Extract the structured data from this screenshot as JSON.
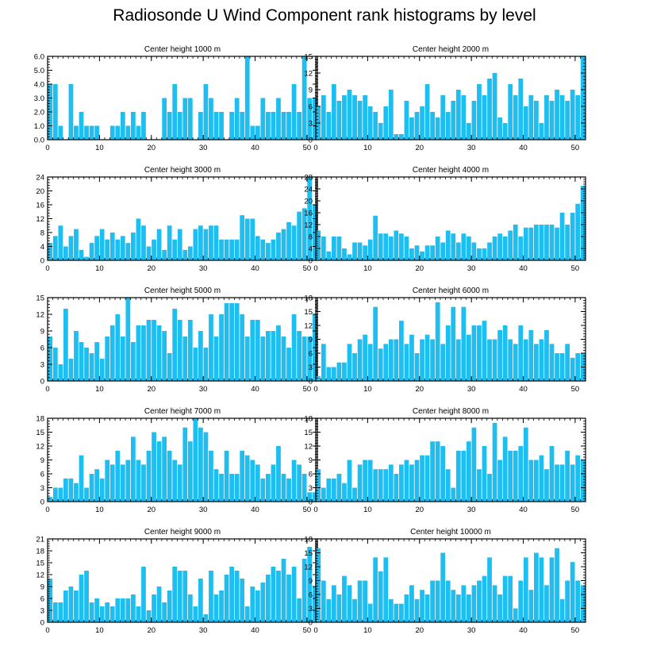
{
  "figure_title": "Radiosonde U Wind Component rank histograms by level",
  "colors": {
    "bar": "#1EBEF0",
    "axis": "#000000"
  },
  "chart_data": [
    {
      "type": "bar",
      "title": "Center height 1000 m",
      "xlim": [
        0,
        52
      ],
      "xticks": [
        0,
        10,
        20,
        30,
        40,
        50
      ],
      "ylim": [
        0,
        6
      ],
      "yticks": [
        0,
        1,
        2,
        3,
        4,
        5,
        6
      ],
      "ytick_labels": [
        "0.0",
        "1.0",
        "2.0",
        "3.0",
        "4.0",
        "5.0",
        "6.0"
      ],
      "values": [
        4,
        4,
        1,
        0,
        4,
        1,
        2,
        1,
        1,
        1,
        0,
        0,
        1,
        1,
        2,
        1,
        2,
        1,
        2,
        0,
        0,
        0,
        3,
        2,
        4,
        2,
        3,
        3,
        0,
        2,
        4,
        3,
        2,
        2,
        0,
        2,
        3,
        2,
        6,
        1,
        1,
        3,
        2,
        2,
        3,
        2,
        2,
        4,
        2,
        6,
        3,
        3
      ]
    },
    {
      "type": "bar",
      "title": "Center height 2000 m",
      "xlim": [
        0,
        52
      ],
      "xticks": [
        0,
        10,
        20,
        30,
        40,
        50
      ],
      "ylim": [
        0,
        15
      ],
      "yticks": [
        0,
        3,
        6,
        9,
        12,
        15
      ],
      "ytick_labels": [
        "0",
        "3",
        "6",
        "9",
        "12",
        "15"
      ],
      "values": [
        6,
        8,
        5,
        10,
        7,
        8,
        9,
        8,
        7,
        8,
        6,
        5,
        3,
        6,
        9,
        1,
        1,
        7,
        4,
        5,
        6,
        10,
        5,
        4,
        8,
        5,
        7,
        9,
        8,
        3,
        7,
        10,
        8,
        11,
        12,
        4,
        3,
        10,
        8,
        11,
        6,
        8,
        7,
        3,
        8,
        7,
        9,
        8,
        7,
        9,
        8,
        15
      ]
    },
    {
      "type": "bar",
      "title": "Center height 3000 m",
      "xlim": [
        0,
        52
      ],
      "xticks": [
        0,
        10,
        20,
        30,
        40,
        50
      ],
      "ylim": [
        0,
        24
      ],
      "yticks": [
        0,
        4,
        8,
        12,
        16,
        20,
        24
      ],
      "ytick_labels": [
        "0",
        "4",
        "8",
        "12",
        "16",
        "20",
        "24"
      ],
      "values": [
        5,
        7,
        10,
        4,
        7,
        9,
        3,
        1,
        5,
        7,
        9,
        6,
        8,
        6,
        7,
        5,
        8,
        12,
        10,
        4,
        6,
        9,
        3,
        10,
        6,
        9,
        3,
        4,
        9,
        10,
        9,
        10,
        10,
        6,
        6,
        6,
        6,
        13,
        12,
        12,
        7,
        6,
        5,
        6,
        8,
        9,
        11,
        10,
        14,
        15,
        24,
        16
      ]
    },
    {
      "type": "bar",
      "title": "Center height 4000 m",
      "xlim": [
        0,
        52
      ],
      "xticks": [
        0,
        10,
        20,
        30,
        40,
        50
      ],
      "ylim": [
        0,
        28
      ],
      "yticks": [
        0,
        4,
        8,
        12,
        16,
        20,
        24,
        28
      ],
      "ytick_labels": [
        "0",
        "4",
        "8",
        "12",
        "16",
        "20",
        "24",
        "28"
      ],
      "values": [
        10,
        8,
        3,
        8,
        8,
        4,
        2,
        6,
        6,
        5,
        7,
        15,
        9,
        9,
        8,
        10,
        9,
        8,
        4,
        5,
        3,
        5,
        5,
        8,
        6,
        10,
        9,
        6,
        9,
        8,
        6,
        4,
        4,
        6,
        8,
        9,
        8,
        10,
        12,
        8,
        11,
        11,
        12,
        12,
        12,
        12,
        11,
        16,
        12,
        16,
        19,
        25
      ]
    },
    {
      "type": "bar",
      "title": "Center height 5000 m",
      "xlim": [
        0,
        52
      ],
      "xticks": [
        0,
        10,
        20,
        30,
        40,
        50
      ],
      "ylim": [
        0,
        15
      ],
      "yticks": [
        0,
        3,
        6,
        9,
        12,
        15
      ],
      "ytick_labels": [
        "0",
        "3",
        "6",
        "9",
        "12",
        "15"
      ],
      "values": [
        8,
        6,
        3,
        13,
        4,
        9,
        7,
        6,
        5,
        7,
        4,
        8,
        10,
        12,
        8,
        15,
        7,
        10,
        10,
        11,
        11,
        10,
        9,
        5,
        13,
        11,
        8,
        11,
        6,
        9,
        6,
        12,
        8,
        12,
        14,
        14,
        14,
        12,
        8,
        11,
        11,
        8,
        9,
        9,
        10,
        8,
        6,
        12,
        9,
        8,
        8,
        12
      ]
    },
    {
      "type": "bar",
      "title": "Center height 6000 m",
      "xlim": [
        0,
        52
      ],
      "xticks": [
        0,
        10,
        20,
        30,
        40,
        50
      ],
      "ylim": [
        0,
        18
      ],
      "yticks": [
        0,
        3,
        6,
        9,
        12,
        15,
        18
      ],
      "ytick_labels": [
        "0",
        "3",
        "6",
        "9",
        "12",
        "15",
        "18"
      ],
      "values": [
        1,
        8,
        3,
        3,
        4,
        4,
        8,
        6,
        9,
        10,
        8,
        16,
        7,
        8,
        9,
        9,
        13,
        8,
        10,
        6,
        9,
        10,
        9,
        17,
        8,
        12,
        16,
        9,
        16,
        10,
        12,
        12,
        13,
        9,
        9,
        11,
        12,
        9,
        8,
        12,
        9,
        11,
        8,
        9,
        11,
        8,
        6,
        6,
        8,
        5,
        6,
        6
      ]
    },
    {
      "type": "bar",
      "title": "Center height 7000 m",
      "xlim": [
        0,
        52
      ],
      "xticks": [
        0,
        10,
        20,
        30,
        40,
        50
      ],
      "ylim": [
        0,
        18
      ],
      "yticks": [
        0,
        3,
        6,
        9,
        12,
        15,
        18
      ],
      "ytick_labels": [
        "0",
        "3",
        "6",
        "9",
        "12",
        "15",
        "18"
      ],
      "values": [
        1,
        3,
        3,
        5,
        5,
        4,
        10,
        3,
        6,
        7,
        5,
        9,
        8,
        11,
        8,
        9,
        14,
        9,
        8,
        11,
        15,
        13,
        14,
        11,
        9,
        8,
        16,
        13,
        18,
        16,
        15,
        11,
        7,
        6,
        11,
        6,
        6,
        11,
        10,
        9,
        8,
        5,
        6,
        8,
        12,
        6,
        5,
        9,
        8,
        6,
        2,
        2
      ]
    },
    {
      "type": "bar",
      "title": "Center height 8000 m",
      "xlim": [
        0,
        52
      ],
      "xticks": [
        0,
        10,
        20,
        30,
        40,
        50
      ],
      "ylim": [
        0,
        18
      ],
      "yticks": [
        0,
        3,
        6,
        9,
        12,
        15,
        18
      ],
      "ytick_labels": [
        "0",
        "3",
        "6",
        "9",
        "12",
        "15",
        "18"
      ],
      "values": [
        7,
        3,
        5,
        5,
        6,
        4,
        9,
        3,
        8,
        9,
        9,
        7,
        7,
        7,
        8,
        6,
        8,
        9,
        8,
        9,
        10,
        10,
        13,
        13,
        12,
        7,
        3,
        11,
        11,
        13,
        16,
        7,
        12,
        6,
        17,
        9,
        14,
        11,
        11,
        12,
        16,
        9,
        9,
        10,
        7,
        12,
        8,
        8,
        11,
        8,
        10,
        9
      ]
    },
    {
      "type": "bar",
      "title": "Center height 9000 m",
      "xlim": [
        0,
        52
      ],
      "xticks": [
        0,
        10,
        20,
        30,
        40,
        50
      ],
      "ylim": [
        0,
        21
      ],
      "yticks": [
        0,
        3,
        6,
        9,
        12,
        15,
        18,
        21
      ],
      "ytick_labels": [
        "0",
        "3",
        "6",
        "9",
        "12",
        "15",
        "18",
        "21"
      ],
      "values": [
        11,
        5,
        5,
        8,
        9,
        8,
        12,
        13,
        5,
        6,
        4,
        5,
        4,
        6,
        6,
        6,
        7,
        4,
        14,
        3,
        7,
        9,
        5,
        8,
        14,
        13,
        13,
        7,
        4,
        11,
        2,
        13,
        7,
        8,
        12,
        14,
        13,
        11,
        4,
        9,
        8,
        10,
        12,
        14,
        13,
        16,
        12,
        14,
        6,
        16,
        19,
        9
      ]
    },
    {
      "type": "bar",
      "title": "Center height 10000 m",
      "xlim": [
        0,
        52
      ],
      "xticks": [
        0,
        10,
        20,
        30,
        40,
        50
      ],
      "ylim": [
        0,
        18
      ],
      "yticks": [
        0,
        3,
        6,
        9,
        12,
        15,
        18
      ],
      "ytick_labels": [
        "0",
        "3",
        "6",
        "9",
        "12",
        "15",
        "18"
      ],
      "values": [
        16,
        9,
        5,
        8,
        6,
        10,
        8,
        5,
        9,
        9,
        4,
        14,
        11,
        14,
        5,
        4,
        4,
        6,
        8,
        5,
        7,
        6,
        9,
        9,
        15,
        9,
        7,
        6,
        8,
        6,
        8,
        9,
        10,
        14,
        8,
        6,
        10,
        10,
        3,
        9,
        14,
        7,
        15,
        14,
        8,
        14,
        16,
        5,
        9,
        13,
        9,
        8
      ]
    }
  ]
}
